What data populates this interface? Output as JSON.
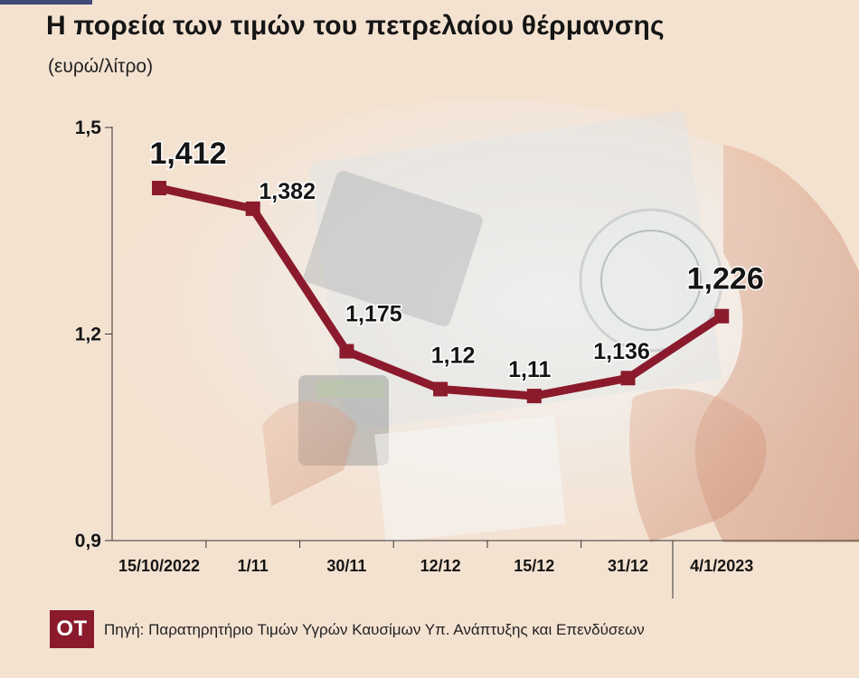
{
  "title": "Η πορεία των τιμών του πετρελαίου θέρμανσης",
  "unit_label": "(ευρώ/λίτρο)",
  "source_text": "Πηγή: Παρατηρητήριο Τιμών Υγρών Καυσίμων Υπ. Ανάπτυξης και Επενδύσεων",
  "logo_text": "ΟΤ",
  "colors": {
    "background": "#f4e2d1",
    "line": "#8b1b2c",
    "logo_bg": "#8b1b2c"
  },
  "chart_data": {
    "type": "line",
    "categories": [
      "15/10/2022",
      "1/11",
      "30/11",
      "12/12",
      "15/12",
      "31/12",
      "4/1/2023"
    ],
    "series": [
      {
        "values": [
          1.412,
          1.382,
          1.175,
          1.12,
          1.11,
          1.136,
          1.226
        ],
        "labels": [
          "1,412",
          "1,382",
          "1,175",
          "1,12",
          "1,11",
          "1,136",
          "1,226"
        ]
      }
    ],
    "ylim": [
      0.9,
      1.5
    ],
    "yticks": [
      0.9,
      1.2,
      1.5
    ],
    "ytick_labels": [
      "0,9",
      "1,2",
      "1,5"
    ],
    "grid": false,
    "legend": "none"
  }
}
